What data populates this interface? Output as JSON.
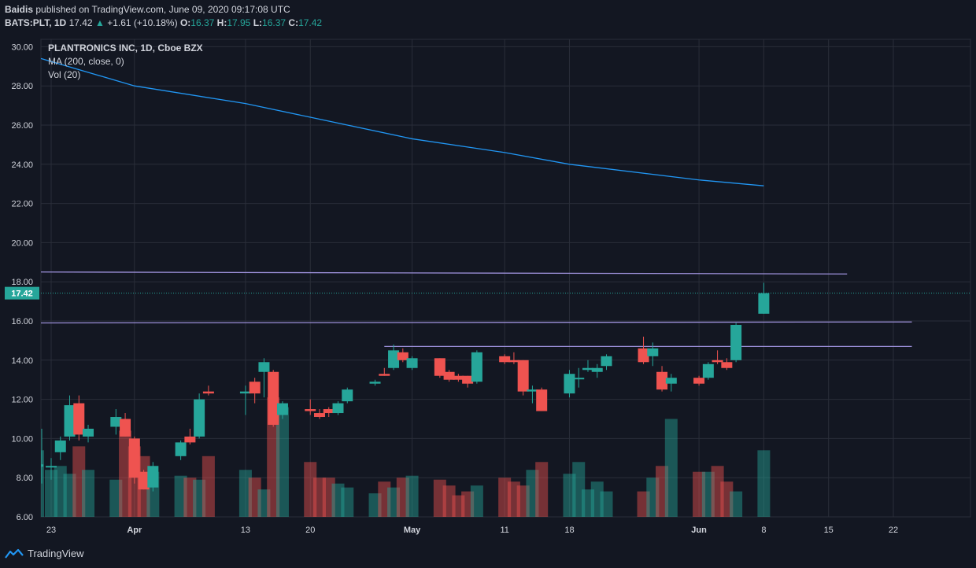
{
  "header": {
    "publisher": "Baidis",
    "published_text": "published on TradingView.com, June 09, 2020 09:17:08 UTC"
  },
  "quote": {
    "symbol": "BATS:PLT, 1D",
    "last": "17.42",
    "arrow": "▲",
    "change": "+1.61 (+10.18%)",
    "o_label": "O:",
    "o": "16.37",
    "h_label": "H:",
    "h": "17.95",
    "l_label": "L:",
    "l": "16.37",
    "c_label": "C:",
    "c": "17.42"
  },
  "legend": {
    "title": "PLANTRONICS INC, 1D, Cboe BZX",
    "ma": "MA (200, close, 0)",
    "vol": "Vol (20)"
  },
  "brand": {
    "name": "TradingView",
    "icon": "tradingview-logo-icon"
  },
  "colors": {
    "up": "#26a69a",
    "down": "#ef5350",
    "ma": "#2196f3",
    "trendline": "#9b8fd8",
    "background": "#131722",
    "grid": "#2a2e39",
    "text": "#d1d4dc"
  },
  "chart_data": {
    "type": "candlestick",
    "title": "PLANTRONICS INC, 1D, Cboe BZX",
    "price_axis_labels": [
      "6.00",
      "8.00",
      "10.00",
      "12.00",
      "14.00",
      "16.00",
      "18.00",
      "20.00",
      "22.00",
      "24.00",
      "26.00",
      "28.00",
      "30.00"
    ],
    "price_range": [
      6,
      30.5
    ],
    "current_price_label": "17.42",
    "x_axis_labels": [
      {
        "label": "23",
        "date": "2020-03-23"
      },
      {
        "label": "Apr",
        "date": "2020-04-01"
      },
      {
        "label": "13",
        "date": "2020-04-13"
      },
      {
        "label": "20",
        "date": "2020-04-20"
      },
      {
        "label": "May",
        "date": "2020-05-01"
      },
      {
        "label": "11",
        "date": "2020-05-11"
      },
      {
        "label": "18",
        "date": "2020-05-18"
      },
      {
        "label": "Jun",
        "date": "2020-06-01"
      },
      {
        "label": "8",
        "date": "2020-06-08"
      },
      {
        "label": "15",
        "date": "2020-06-15"
      },
      {
        "label": "22",
        "date": "2020-06-22"
      }
    ],
    "candles": [
      {
        "date": "2020-03-20",
        "o": 8.6,
        "h": 10.5,
        "l": 7.7,
        "c": 8.6
      },
      {
        "date": "2020-03-23",
        "o": 8.6,
        "h": 9.0,
        "l": 7.9,
        "c": 8.6
      },
      {
        "date": "2020-03-24",
        "o": 9.3,
        "h": 10.1,
        "l": 8.9,
        "c": 9.9
      },
      {
        "date": "2020-03-25",
        "o": 10.1,
        "h": 12.2,
        "l": 9.9,
        "c": 11.7
      },
      {
        "date": "2020-03-26",
        "o": 11.8,
        "h": 12.2,
        "l": 9.9,
        "c": 10.2
      },
      {
        "date": "2020-03-27",
        "o": 10.1,
        "h": 10.7,
        "l": 9.8,
        "c": 10.5
      },
      {
        "date": "2020-03-30",
        "o": 10.6,
        "h": 11.5,
        "l": 10.2,
        "c": 11.1
      },
      {
        "date": "2020-03-31",
        "o": 11.0,
        "h": 11.3,
        "l": 10.1,
        "c": 10.1
      },
      {
        "date": "2020-04-01",
        "o": 10.0,
        "h": 10.1,
        "l": 7.7,
        "c": 8.0
      },
      {
        "date": "2020-04-02",
        "o": 8.3,
        "h": 8.4,
        "l": 7.4,
        "c": 7.4
      },
      {
        "date": "2020-04-03",
        "o": 7.5,
        "h": 8.8,
        "l": 7.3,
        "c": 8.6
      },
      {
        "date": "2020-04-06",
        "o": 9.1,
        "h": 9.9,
        "l": 8.9,
        "c": 9.8
      },
      {
        "date": "2020-04-07",
        "o": 10.1,
        "h": 10.5,
        "l": 9.7,
        "c": 9.8
      },
      {
        "date": "2020-04-08",
        "o": 10.1,
        "h": 12.3,
        "l": 10.0,
        "c": 12.0
      },
      {
        "date": "2020-04-09",
        "o": 12.4,
        "h": 12.7,
        "l": 12.2,
        "c": 12.3
      },
      {
        "date": "2020-04-13",
        "o": 12.3,
        "h": 12.7,
        "l": 11.2,
        "c": 12.4
      },
      {
        "date": "2020-04-14",
        "o": 12.9,
        "h": 13.1,
        "l": 11.8,
        "c": 12.3
      },
      {
        "date": "2020-04-15",
        "o": 13.4,
        "h": 14.1,
        "l": 12.1,
        "c": 13.9
      },
      {
        "date": "2020-04-16",
        "o": 13.4,
        "h": 13.5,
        "l": 10.6,
        "c": 10.7
      },
      {
        "date": "2020-04-17",
        "o": 11.2,
        "h": 11.9,
        "l": 11.0,
        "c": 11.8
      },
      {
        "date": "2020-04-20",
        "o": 11.5,
        "h": 12.0,
        "l": 11.2,
        "c": 11.4
      },
      {
        "date": "2020-04-21",
        "o": 11.3,
        "h": 11.5,
        "l": 11.0,
        "c": 11.1
      },
      {
        "date": "2020-04-22",
        "o": 11.5,
        "h": 11.6,
        "l": 11.1,
        "c": 11.3
      },
      {
        "date": "2020-04-23",
        "o": 11.3,
        "h": 11.9,
        "l": 11.2,
        "c": 11.8
      },
      {
        "date": "2020-04-24",
        "o": 11.9,
        "h": 12.6,
        "l": 11.8,
        "c": 12.5
      },
      {
        "date": "2020-04-27",
        "o": 12.8,
        "h": 13.0,
        "l": 12.7,
        "c": 12.9
      },
      {
        "date": "2020-04-28",
        "o": 13.3,
        "h": 13.6,
        "l": 13.2,
        "c": 13.2
      },
      {
        "date": "2020-04-29",
        "o": 13.6,
        "h": 14.8,
        "l": 13.5,
        "c": 14.5
      },
      {
        "date": "2020-04-30",
        "o": 14.4,
        "h": 14.6,
        "l": 13.9,
        "c": 14.0
      },
      {
        "date": "2020-05-01",
        "o": 13.6,
        "h": 14.2,
        "l": 13.5,
        "c": 14.1
      },
      {
        "date": "2020-05-04",
        "o": 14.1,
        "h": 14.1,
        "l": 13.1,
        "c": 13.2
      },
      {
        "date": "2020-05-05",
        "o": 13.4,
        "h": 13.5,
        "l": 12.9,
        "c": 13.0
      },
      {
        "date": "2020-05-06",
        "o": 13.2,
        "h": 13.3,
        "l": 12.9,
        "c": 13.0
      },
      {
        "date": "2020-05-07",
        "o": 13.2,
        "h": 13.2,
        "l": 12.6,
        "c": 12.8
      },
      {
        "date": "2020-05-08",
        "o": 12.9,
        "h": 14.5,
        "l": 12.8,
        "c": 14.4
      },
      {
        "date": "2020-05-11",
        "o": 14.2,
        "h": 14.3,
        "l": 13.8,
        "c": 13.9
      },
      {
        "date": "2020-05-12",
        "o": 14.0,
        "h": 14.4,
        "l": 13.8,
        "c": 13.9
      },
      {
        "date": "2020-05-13",
        "o": 14.0,
        "h": 14.0,
        "l": 12.2,
        "c": 12.4
      },
      {
        "date": "2020-05-14",
        "o": 12.4,
        "h": 12.7,
        "l": 11.8,
        "c": 12.5
      },
      {
        "date": "2020-05-15",
        "o": 12.5,
        "h": 12.6,
        "l": 11.4,
        "c": 11.4
      },
      {
        "date": "2020-05-18",
        "o": 12.3,
        "h": 13.5,
        "l": 12.1,
        "c": 13.3
      },
      {
        "date": "2020-05-19",
        "o": 13.1,
        "h": 13.6,
        "l": 12.6,
        "c": 13.1
      },
      {
        "date": "2020-05-20",
        "o": 13.5,
        "h": 14.0,
        "l": 13.4,
        "c": 13.6
      },
      {
        "date": "2020-05-21",
        "o": 13.4,
        "h": 13.8,
        "l": 13.1,
        "c": 13.6
      },
      {
        "date": "2020-05-22",
        "o": 13.7,
        "h": 14.3,
        "l": 13.5,
        "c": 14.2
      },
      {
        "date": "2020-05-26",
        "o": 14.6,
        "h": 15.2,
        "l": 13.8,
        "c": 13.9
      },
      {
        "date": "2020-05-27",
        "o": 14.2,
        "h": 14.9,
        "l": 13.7,
        "c": 14.6
      },
      {
        "date": "2020-05-28",
        "o": 13.4,
        "h": 13.7,
        "l": 12.4,
        "c": 12.5
      },
      {
        "date": "2020-05-29",
        "o": 12.8,
        "h": 13.3,
        "l": 12.4,
        "c": 13.1
      },
      {
        "date": "2020-06-01",
        "o": 13.1,
        "h": 13.2,
        "l": 12.7,
        "c": 12.8
      },
      {
        "date": "2020-06-02",
        "o": 13.1,
        "h": 13.9,
        "l": 13.0,
        "c": 13.8
      },
      {
        "date": "2020-06-03",
        "o": 14.0,
        "h": 14.5,
        "l": 13.8,
        "c": 13.9
      },
      {
        "date": "2020-06-04",
        "o": 13.9,
        "h": 14.1,
        "l": 13.5,
        "c": 13.6
      },
      {
        "date": "2020-06-05",
        "o": 14.0,
        "h": 15.9,
        "l": 13.9,
        "c": 15.8
      },
      {
        "date": "2020-06-08",
        "o": 16.37,
        "h": 17.95,
        "l": 16.37,
        "c": 17.42
      }
    ],
    "volume_bar_heights_price_units": [
      2.4,
      2.6,
      2.2,
      3.6,
      2.4,
      1.9,
      4.4,
      3.6,
      3.1,
      2.3,
      2.1,
      2.0,
      1.9,
      3.1,
      2.4,
      2.0,
      1.4,
      6.1,
      5.6,
      2.8,
      2.0,
      2.0,
      1.7,
      1.5,
      1.2,
      1.8,
      1.5,
      2.0,
      2.1,
      1.9,
      1.6,
      1.1,
      1.3,
      1.6,
      2.0,
      1.8,
      1.6,
      2.4,
      2.8,
      2.2,
      2.8,
      1.4,
      1.8,
      1.3,
      1.3,
      2.0,
      2.6,
      5.0,
      2.3,
      2.3,
      2.6,
      1.8,
      1.3,
      3.4,
      3.0
    ],
    "ma": {
      "name": "MA (200, close, 0)",
      "points": [
        {
          "date": "2020-03-20",
          "v": 29.4
        },
        {
          "date": "2020-04-01",
          "v": 28.0
        },
        {
          "date": "2020-04-13",
          "v": 27.1
        },
        {
          "date": "2020-04-20",
          "v": 26.4
        },
        {
          "date": "2020-05-01",
          "v": 25.3
        },
        {
          "date": "2020-05-11",
          "v": 24.6
        },
        {
          "date": "2020-05-18",
          "v": 24.0
        },
        {
          "date": "2020-06-01",
          "v": 23.2
        },
        {
          "date": "2020-06-08",
          "v": 22.9
        }
      ]
    },
    "trendlines": [
      {
        "from": {
          "date": "2020-03-20",
          "v": 18.5
        },
        "to": {
          "date": "2020-06-17",
          "v": 18.4
        }
      },
      {
        "from": {
          "date": "2020-03-20",
          "v": 15.9
        },
        "to": {
          "date": "2020-06-24",
          "v": 15.95
        }
      },
      {
        "from": {
          "date": "2020-04-28",
          "v": 14.7
        },
        "to": {
          "date": "2020-06-24",
          "v": 14.7
        }
      }
    ]
  }
}
